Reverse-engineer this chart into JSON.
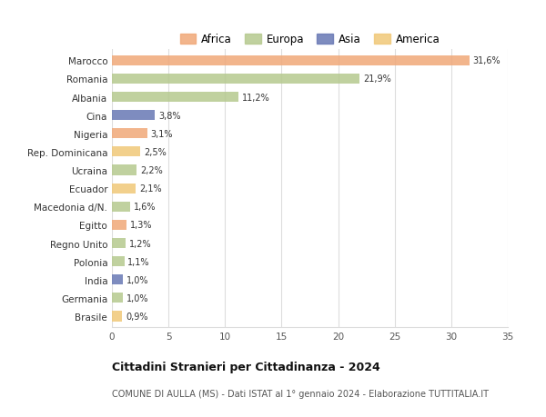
{
  "countries": [
    "Marocco",
    "Romania",
    "Albania",
    "Cina",
    "Nigeria",
    "Rep. Dominicana",
    "Ucraina",
    "Ecuador",
    "Macedonia d/N.",
    "Egitto",
    "Regno Unito",
    "Polonia",
    "India",
    "Germania",
    "Brasile"
  ],
  "values": [
    31.6,
    21.9,
    11.2,
    3.8,
    3.1,
    2.5,
    2.2,
    2.1,
    1.6,
    1.3,
    1.2,
    1.1,
    1.0,
    1.0,
    0.9
  ],
  "labels": [
    "31,6%",
    "21,9%",
    "11,2%",
    "3,8%",
    "3,1%",
    "2,5%",
    "2,2%",
    "2,1%",
    "1,6%",
    "1,3%",
    "1,2%",
    "1,1%",
    "1,0%",
    "1,0%",
    "0,9%"
  ],
  "continents": [
    "Africa",
    "Europa",
    "Europa",
    "Asia",
    "Africa",
    "America",
    "Europa",
    "America",
    "Europa",
    "Africa",
    "Europa",
    "Europa",
    "Asia",
    "Europa",
    "America"
  ],
  "colors": {
    "Africa": "#F0A878",
    "Europa": "#B5C98E",
    "Asia": "#6878B4",
    "America": "#F0C878"
  },
  "legend_order": [
    "Africa",
    "Europa",
    "Asia",
    "America"
  ],
  "xlim": [
    0,
    35
  ],
  "xticks": [
    0,
    5,
    10,
    15,
    20,
    25,
    30,
    35
  ],
  "title": "Cittadini Stranieri per Cittadinanza - 2024",
  "subtitle": "COMUNE DI AULLA (MS) - Dati ISTAT al 1° gennaio 2024 - Elaborazione TUTTITALIA.IT",
  "bg_color": "#ffffff",
  "grid_color": "#dddddd",
  "bar_height": 0.55
}
